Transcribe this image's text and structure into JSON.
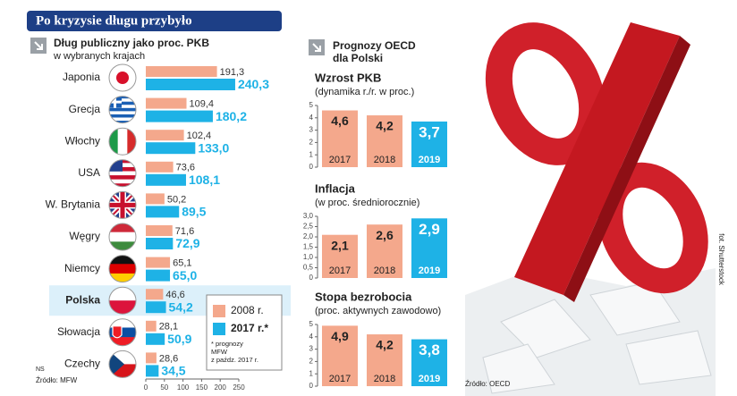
{
  "title": "Po kryzysie długu przybyło",
  "photo_credit": "fot. Shutterstock",
  "author": "NS",
  "forecast_heading": [
    "Prognozy OECD",
    "dla Polski"
  ],
  "chart_data": [
    {
      "type": "hbar",
      "title": "Dług publiczny jako proc. PKB",
      "subtitle": "w wybranych krajach",
      "categories": [
        "Japonia",
        "Grecja",
        "Włochy",
        "USA",
        "W. Brytania",
        "Węgry",
        "Niemcy",
        "Polska",
        "Słowacja",
        "Czechy"
      ],
      "highlight": 7,
      "series": [
        {
          "name": "2008 r.",
          "color": "#f4a88c",
          "values": [
            191.3,
            109.4,
            102.4,
            73.6,
            50.2,
            71.6,
            65.1,
            46.6,
            28.1,
            28.6
          ],
          "value_labels": [
            "191,3",
            "109,4",
            "102,4",
            "73,6",
            "50,2",
            "71,6",
            "65,1",
            "46,6",
            "28,1",
            "28,6"
          ]
        },
        {
          "name": "2017 r.*",
          "color": "#1eb2e6",
          "values": [
            240.3,
            180.2,
            133.0,
            108.1,
            89.5,
            72.9,
            65.0,
            54.2,
            50.9,
            34.5
          ],
          "value_labels": [
            "240,3",
            "180,2",
            "133,0",
            "108,1",
            "89,5",
            "72,9",
            "65,0",
            "54,2",
            "50,9",
            "34,5"
          ]
        }
      ],
      "xlim": [
        0,
        250
      ],
      "xticks": [
        0,
        50,
        100,
        150,
        200,
        250
      ],
      "footnote": [
        "* prognozy",
        "MFW",
        "z paźdz. 2017 r."
      ],
      "source": "Źródło: MFW"
    },
    {
      "type": "bar",
      "title": "Wzrost PKB",
      "subtitle": "(dynamika r./r. w proc.)",
      "categories": [
        "2017",
        "2018",
        "2019"
      ],
      "values": [
        4.6,
        4.2,
        3.7
      ],
      "value_labels": [
        "4,6",
        "4,2",
        "3,7"
      ],
      "colors": [
        "#f4a88c",
        "#f4a88c",
        "#1eb2e6"
      ],
      "ylim": [
        0,
        5
      ],
      "yticks": [
        0,
        1,
        2,
        3,
        4,
        5
      ]
    },
    {
      "type": "bar",
      "title": "Inflacja",
      "subtitle": "(w proc. średniorocznie)",
      "categories": [
        "2017",
        "2018",
        "2019"
      ],
      "values": [
        2.1,
        2.6,
        2.9
      ],
      "value_labels": [
        "2,1",
        "2,6",
        "2,9"
      ],
      "colors": [
        "#f4a88c",
        "#f4a88c",
        "#1eb2e6"
      ],
      "ylim": [
        0,
        3
      ],
      "yticks": [
        0,
        {
          "value": 0.5,
          "label": "0,5"
        },
        {
          "value": 1,
          "label": "1,0"
        },
        {
          "value": 1.5,
          "label": "1,5"
        },
        {
          "value": 2,
          "label": "2,0"
        },
        {
          "value": 2.5,
          "label": "2,5"
        },
        {
          "value": 3,
          "label": "3,0"
        }
      ]
    },
    {
      "type": "bar",
      "title": "Stopa bezrobocia",
      "subtitle": "(proc. aktywnych zawodowo)",
      "categories": [
        "2017",
        "2018",
        "2019"
      ],
      "values": [
        4.9,
        4.2,
        3.8
      ],
      "value_labels": [
        "4,9",
        "4,2",
        "3,8"
      ],
      "colors": [
        "#f4a88c",
        "#f4a88c",
        "#1eb2e6"
      ],
      "ylim": [
        0,
        5
      ],
      "yticks": [
        0,
        1,
        2,
        3,
        4,
        5
      ],
      "source": "Źródło: OECD"
    }
  ]
}
